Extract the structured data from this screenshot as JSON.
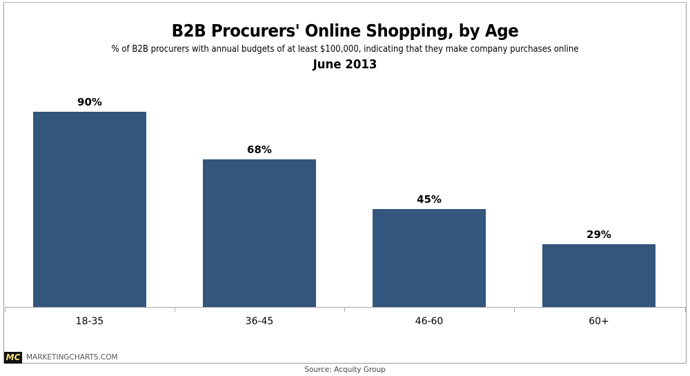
{
  "header": {
    "title": "B2B Procurers' Online Shopping, by Age",
    "subtitle": "% of B2B procurers with annual budgets of at least $100,000, indicating that they make company purchases online",
    "date": "June 2013"
  },
  "bars": [
    {
      "category": "18-35",
      "label": "90%",
      "value": 90
    },
    {
      "category": "36-45",
      "label": "68%",
      "value": 68
    },
    {
      "category": "46-60",
      "label": "45%",
      "value": 45
    },
    {
      "category": "60+",
      "label": "29%",
      "value": 29
    }
  ],
  "footer": {
    "logo": "MC",
    "brand": "MARKETINGCHARTS.COM",
    "source": "Source: Acquity Group"
  },
  "colors": {
    "bar": "#33567d",
    "logo_bg": "#111111",
    "logo_text": "#f3e27a"
  },
  "chart_data": {
    "type": "bar",
    "title": "B2B Procurers' Online Shopping, by Age",
    "subtitle": "% of B2B procurers with annual budgets of at least $100,000, indicating that they make company purchases online",
    "date": "June 2013",
    "categories": [
      "18-35",
      "36-45",
      "46-60",
      "60+"
    ],
    "values": [
      90,
      68,
      45,
      29
    ],
    "data_labels": [
      "90%",
      "68%",
      "45%",
      "29%"
    ],
    "xlabel": "",
    "ylabel": "",
    "ylim": [
      0,
      100
    ],
    "grid": false,
    "legend": null,
    "source": "Source: Acquity Group"
  }
}
